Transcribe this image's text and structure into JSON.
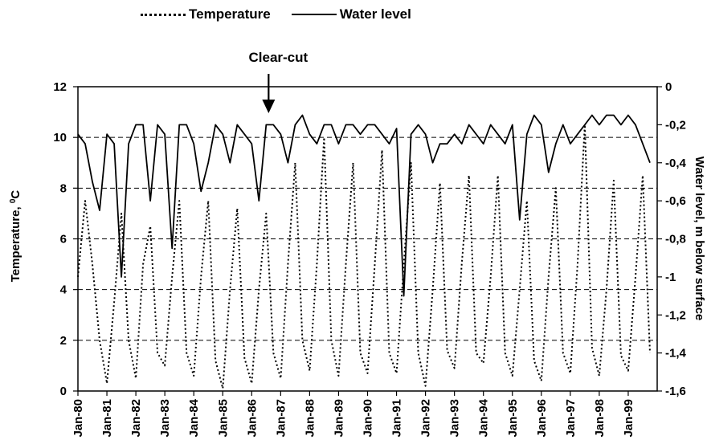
{
  "chart_data": {
    "type": "line",
    "title": "",
    "legend": {
      "position": "top-left",
      "entries": [
        {
          "label": "Temperature",
          "style": "dotted"
        },
        {
          "label": "Water level",
          "style": "solid"
        }
      ]
    },
    "x_tick_labels": [
      "Jan-80",
      "Jan-81",
      "Jan-82",
      "Jan-83",
      "Jan-84",
      "Jan-85",
      "Jan-86",
      "Jan-87",
      "Jan-88",
      "Jan-89",
      "Jan-90",
      "Jan-91",
      "Jan-92",
      "Jan-93",
      "Jan-94",
      "Jan-95",
      "Jan-96",
      "Jan-97",
      "Jan-98",
      "Jan-99"
    ],
    "xlim": [
      "Jan-80",
      "Jan-00"
    ],
    "left_axis": {
      "label": "Temperature, ",
      "label_superscript": "0",
      "label_suffix": "C",
      "ylim": [
        0,
        12
      ],
      "tick_labels": [
        "0",
        "2",
        "4",
        "6",
        "8",
        "10",
        "12"
      ]
    },
    "right_axis": {
      "label": "Water level, m below surface",
      "ylim": [
        -1.6,
        0
      ],
      "tick_labels": [
        "-1,6",
        "-1,4",
        "-1,2",
        "-1",
        "-0,8",
        "-0,6",
        "-0,4",
        "-0,2",
        "0"
      ]
    },
    "grid": "horizontal dashed at temperature 2, 4, 6, 8, 10",
    "annotation": {
      "text": "Clear-cut",
      "x": "Aug-86"
    },
    "series": [
      {
        "name": "Temperature",
        "axis": "left",
        "style": "dotted",
        "x": [
          "Jan-80",
          "Apr-80",
          "Jul-80",
          "Oct-80",
          "Jan-81",
          "Apr-81",
          "Jul-81",
          "Oct-81",
          "Jan-82",
          "Apr-82",
          "Jul-82",
          "Oct-82",
          "Jan-83",
          "Apr-83",
          "Jul-83",
          "Oct-83",
          "Jan-84",
          "Apr-84",
          "Jul-84",
          "Oct-84",
          "Jan-85",
          "Apr-85",
          "Jul-85",
          "Oct-85",
          "Jan-86",
          "Apr-86",
          "Jul-86",
          "Oct-86",
          "Jan-87",
          "Apr-87",
          "Jul-87",
          "Oct-87",
          "Jan-88",
          "Apr-88",
          "Jul-88",
          "Oct-88",
          "Jan-89",
          "Apr-89",
          "Jul-89",
          "Oct-89",
          "Jan-90",
          "Apr-90",
          "Jul-90",
          "Oct-90",
          "Jan-91",
          "Apr-91",
          "Jul-91",
          "Oct-91",
          "Jan-92",
          "Apr-92",
          "Jul-92",
          "Oct-92",
          "Jan-93",
          "Apr-93",
          "Jul-93",
          "Oct-93",
          "Jan-94",
          "Apr-94",
          "Jul-94",
          "Oct-94",
          "Jan-95",
          "Apr-95",
          "Jul-95",
          "Oct-95",
          "Jan-96",
          "Apr-96",
          "Jul-96",
          "Oct-96",
          "Jan-97",
          "Apr-97",
          "Jul-97",
          "Oct-97",
          "Jan-98",
          "Apr-98",
          "Jul-98",
          "Oct-98",
          "Jan-99",
          "Apr-99",
          "Jul-99",
          "Oct-99"
        ],
        "values": [
          4.5,
          7.5,
          5.0,
          2.0,
          0.3,
          3.5,
          7.0,
          2.0,
          0.5,
          5.0,
          6.5,
          1.5,
          1.0,
          4.5,
          7.5,
          1.5,
          0.6,
          4.5,
          7.5,
          1.2,
          0.1,
          4.0,
          7.2,
          1.3,
          0.3,
          4.0,
          7.0,
          1.5,
          0.5,
          5.0,
          9.0,
          2.0,
          0.8,
          5.0,
          10.0,
          2.0,
          0.6,
          5.0,
          9.0,
          1.5,
          0.7,
          5.0,
          9.5,
          1.5,
          0.7,
          5.0,
          9.0,
          1.5,
          0.2,
          4.0,
          8.2,
          1.6,
          0.9,
          5.0,
          8.5,
          1.5,
          1.1,
          4.5,
          8.5,
          1.5,
          0.6,
          4.0,
          7.5,
          1.2,
          0.4,
          4.5,
          8.0,
          1.5,
          0.7,
          5.0,
          10.5,
          1.7,
          0.6,
          4.0,
          8.3,
          1.4,
          0.8,
          4.5,
          8.5,
          1.5
        ]
      },
      {
        "name": "Water level",
        "axis": "right",
        "style": "solid",
        "x": [
          "Jan-80",
          "Apr-80",
          "Jul-80",
          "Oct-80",
          "Jan-81",
          "Apr-81",
          "Jul-81",
          "Oct-81",
          "Jan-82",
          "Apr-82",
          "Jul-82",
          "Oct-82",
          "Jan-83",
          "Apr-83",
          "Jul-83",
          "Oct-83",
          "Jan-84",
          "Apr-84",
          "Jul-84",
          "Oct-84",
          "Jan-85",
          "Apr-85",
          "Jul-85",
          "Oct-85",
          "Jan-86",
          "Apr-86",
          "Jul-86",
          "Oct-86",
          "Jan-87",
          "Apr-87",
          "Jul-87",
          "Oct-87",
          "Jan-88",
          "Apr-88",
          "Jul-88",
          "Oct-88",
          "Jan-89",
          "Apr-89",
          "Jul-89",
          "Oct-89",
          "Jan-90",
          "Apr-90",
          "Jul-90",
          "Oct-90",
          "Jan-91",
          "Apr-91",
          "Jul-91",
          "Oct-91",
          "Jan-92",
          "Apr-92",
          "Jul-92",
          "Oct-92",
          "Jan-93",
          "Apr-93",
          "Jul-93",
          "Oct-93",
          "Jan-94",
          "Apr-94",
          "Jul-94",
          "Oct-94",
          "Jan-95",
          "Apr-95",
          "Jul-95",
          "Oct-95",
          "Jan-96",
          "Apr-96",
          "Jul-96",
          "Oct-96",
          "Jan-97",
          "Apr-97",
          "Jul-97",
          "Oct-97",
          "Jan-98",
          "Apr-98",
          "Jul-98",
          "Oct-98",
          "Jan-99",
          "Apr-99",
          "Jul-99",
          "Oct-99"
        ],
        "values": [
          -0.25,
          -0.3,
          -0.5,
          -0.65,
          -0.25,
          -0.3,
          -1.0,
          -0.3,
          -0.2,
          -0.2,
          -0.6,
          -0.2,
          -0.25,
          -0.85,
          -0.2,
          -0.2,
          -0.3,
          -0.55,
          -0.4,
          -0.2,
          -0.25,
          -0.4,
          -0.2,
          -0.25,
          -0.3,
          -0.6,
          -0.2,
          -0.2,
          -0.25,
          -0.4,
          -0.2,
          -0.15,
          -0.25,
          -0.3,
          -0.2,
          -0.2,
          -0.3,
          -0.2,
          -0.2,
          -0.25,
          -0.2,
          -0.2,
          -0.25,
          -0.3,
          -0.22,
          -1.1,
          -0.25,
          -0.2,
          -0.25,
          -0.4,
          -0.3,
          -0.3,
          -0.25,
          -0.3,
          -0.2,
          -0.25,
          -0.3,
          -0.2,
          -0.25,
          -0.3,
          -0.2,
          -0.7,
          -0.25,
          -0.15,
          -0.2,
          -0.45,
          -0.3,
          -0.2,
          -0.3,
          -0.25,
          -0.2,
          -0.15,
          -0.2,
          -0.15,
          -0.15,
          -0.2,
          -0.15,
          -0.2,
          -0.3,
          -0.4
        ]
      }
    ]
  }
}
